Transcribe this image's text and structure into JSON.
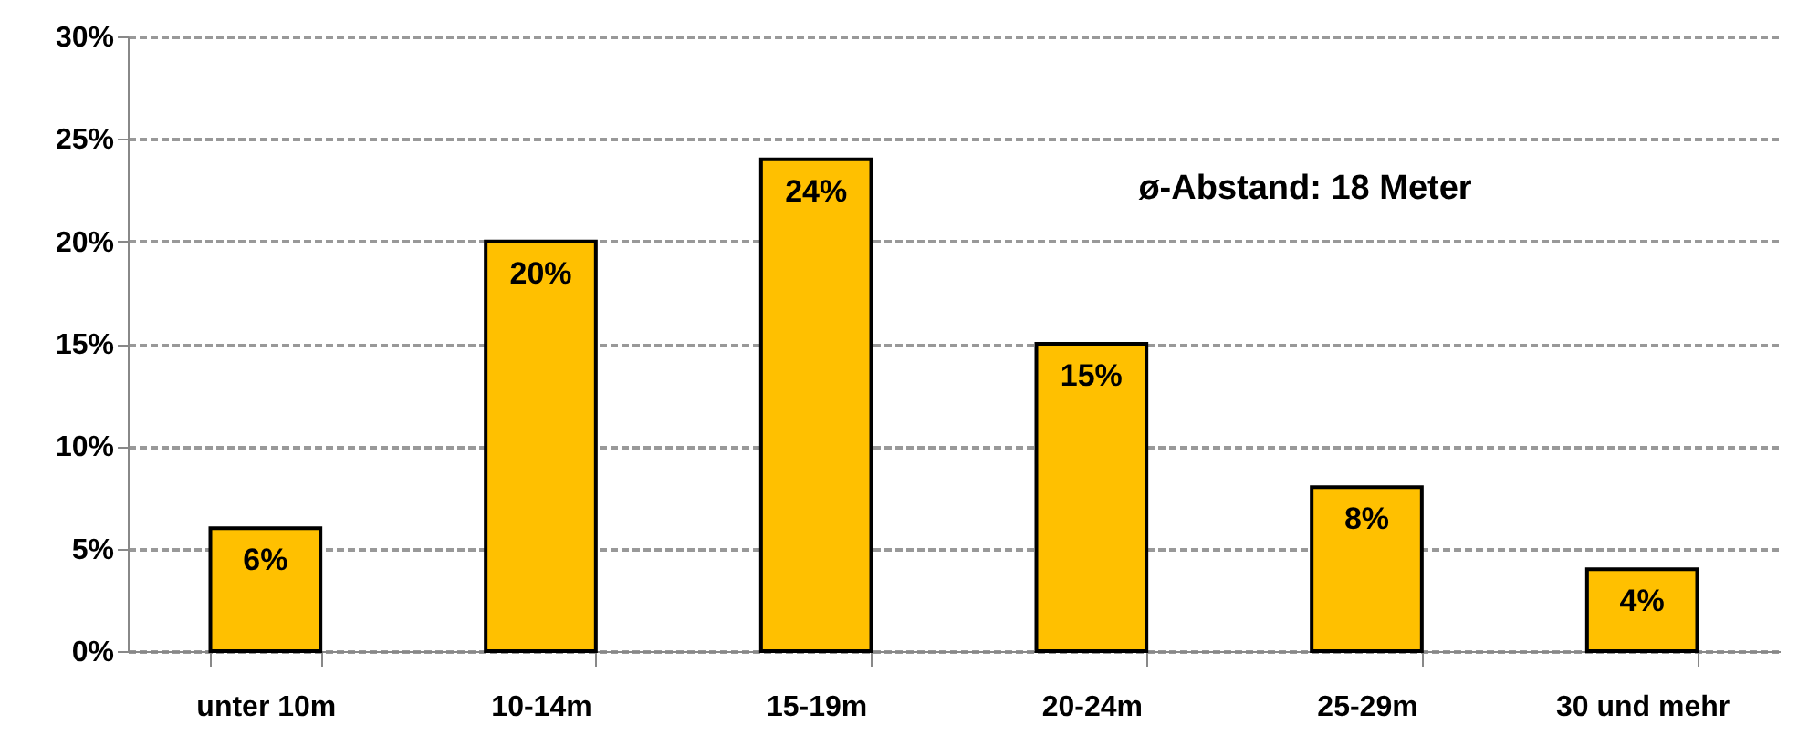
{
  "chart_data": {
    "type": "bar",
    "categories": [
      "unter 10m",
      "10-14m",
      "15-19m",
      "20-24m",
      "25-29m",
      "30 und mehr"
    ],
    "values": [
      6,
      20,
      24,
      15,
      8,
      4
    ],
    "value_labels": [
      "6%",
      "20%",
      "24%",
      "15%",
      "8%",
      "4%"
    ],
    "color": "#ffc000",
    "ylim": [
      0,
      30
    ],
    "yticks": [
      {
        "value": 0,
        "label": "0%"
      },
      {
        "value": 5,
        "label": "5%"
      },
      {
        "value": 10,
        "label": "10%"
      },
      {
        "value": 15,
        "label": "15%"
      },
      {
        "value": 20,
        "label": "20%"
      },
      {
        "value": 25,
        "label": "25%"
      },
      {
        "value": 30,
        "label": "30%"
      }
    ],
    "grid": "y",
    "annotations": [
      "ø-Abstand:  18 Meter"
    ]
  }
}
